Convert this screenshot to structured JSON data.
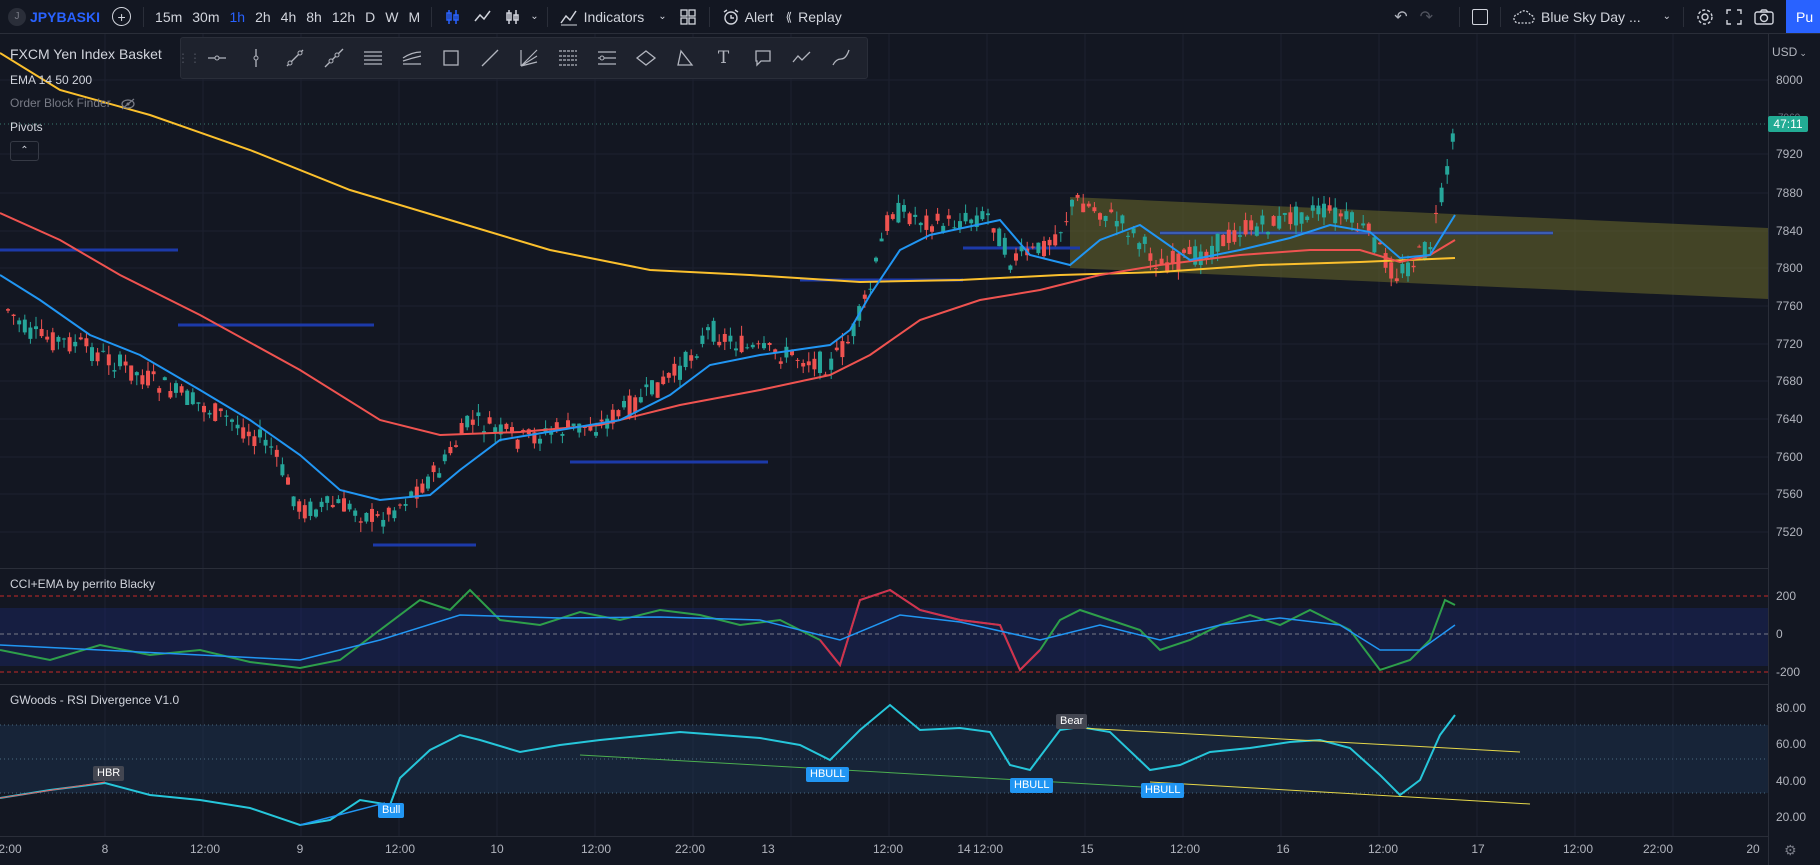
{
  "toolbar": {
    "symbol_badge": "J",
    "symbol": "JPYBASKI",
    "intervals": [
      "15m",
      "30m",
      "1h",
      "2h",
      "4h",
      "8h",
      "12h",
      "D",
      "W",
      "M"
    ],
    "active_interval": "1h",
    "indicators_label": "Indicators",
    "alert_label": "Alert",
    "replay_label": "Replay",
    "layout_name": "Blue Sky Day ...",
    "publish_label": "Pu"
  },
  "legend": {
    "symbol_title": "FXCM Yen Index Basket",
    "ema": "EMA 14 50 200",
    "order_block": "Order Block Finder",
    "pivots": "Pivots",
    "cci_title": "CCI+EMA by perrito Blacky",
    "rsi_title": "GWoods - RSI Divergence V1.0"
  },
  "price_axis": {
    "currency": "USD",
    "labels": [
      "8000",
      "7920",
      "7880",
      "7840",
      "7800",
      "7760",
      "7720",
      "7680",
      "7640",
      "7600",
      "7560",
      "7520"
    ],
    "last_price_partial": "7960",
    "countdown": "47:11",
    "cci_labels": [
      "200",
      "0",
      "-200"
    ],
    "rsi_labels": [
      "80.00",
      "60.00",
      "40.00",
      "20.00"
    ]
  },
  "time_axis": {
    "labels": [
      "2:00",
      "8",
      "12:00",
      "9",
      "12:00",
      "10",
      "12:00",
      "22:00",
      "13",
      "12:00",
      "14",
      "12:00",
      "15",
      "12:00",
      "16",
      "12:00",
      "17",
      "12:00",
      "22:00",
      "20"
    ]
  },
  "annotations": {
    "hbr": "HBR",
    "bull": "Bull",
    "bear": "Bear",
    "hbull": "HBULL",
    "pivot_p": "P"
  },
  "colors": {
    "background": "#131722",
    "ema14": "#2196f3",
    "ema50": "#ef5350",
    "ema200": "#fbc02d",
    "up_candle": "#26a69a",
    "down_candle": "#ef5350",
    "pivot_line": "#1c3aa9",
    "channel_fill": "#6b6a2a",
    "rsi_line": "#26c6da",
    "cci_green": "#2e9f4a",
    "cci_red": "#d32f4f",
    "accent": "#2962ff"
  }
}
